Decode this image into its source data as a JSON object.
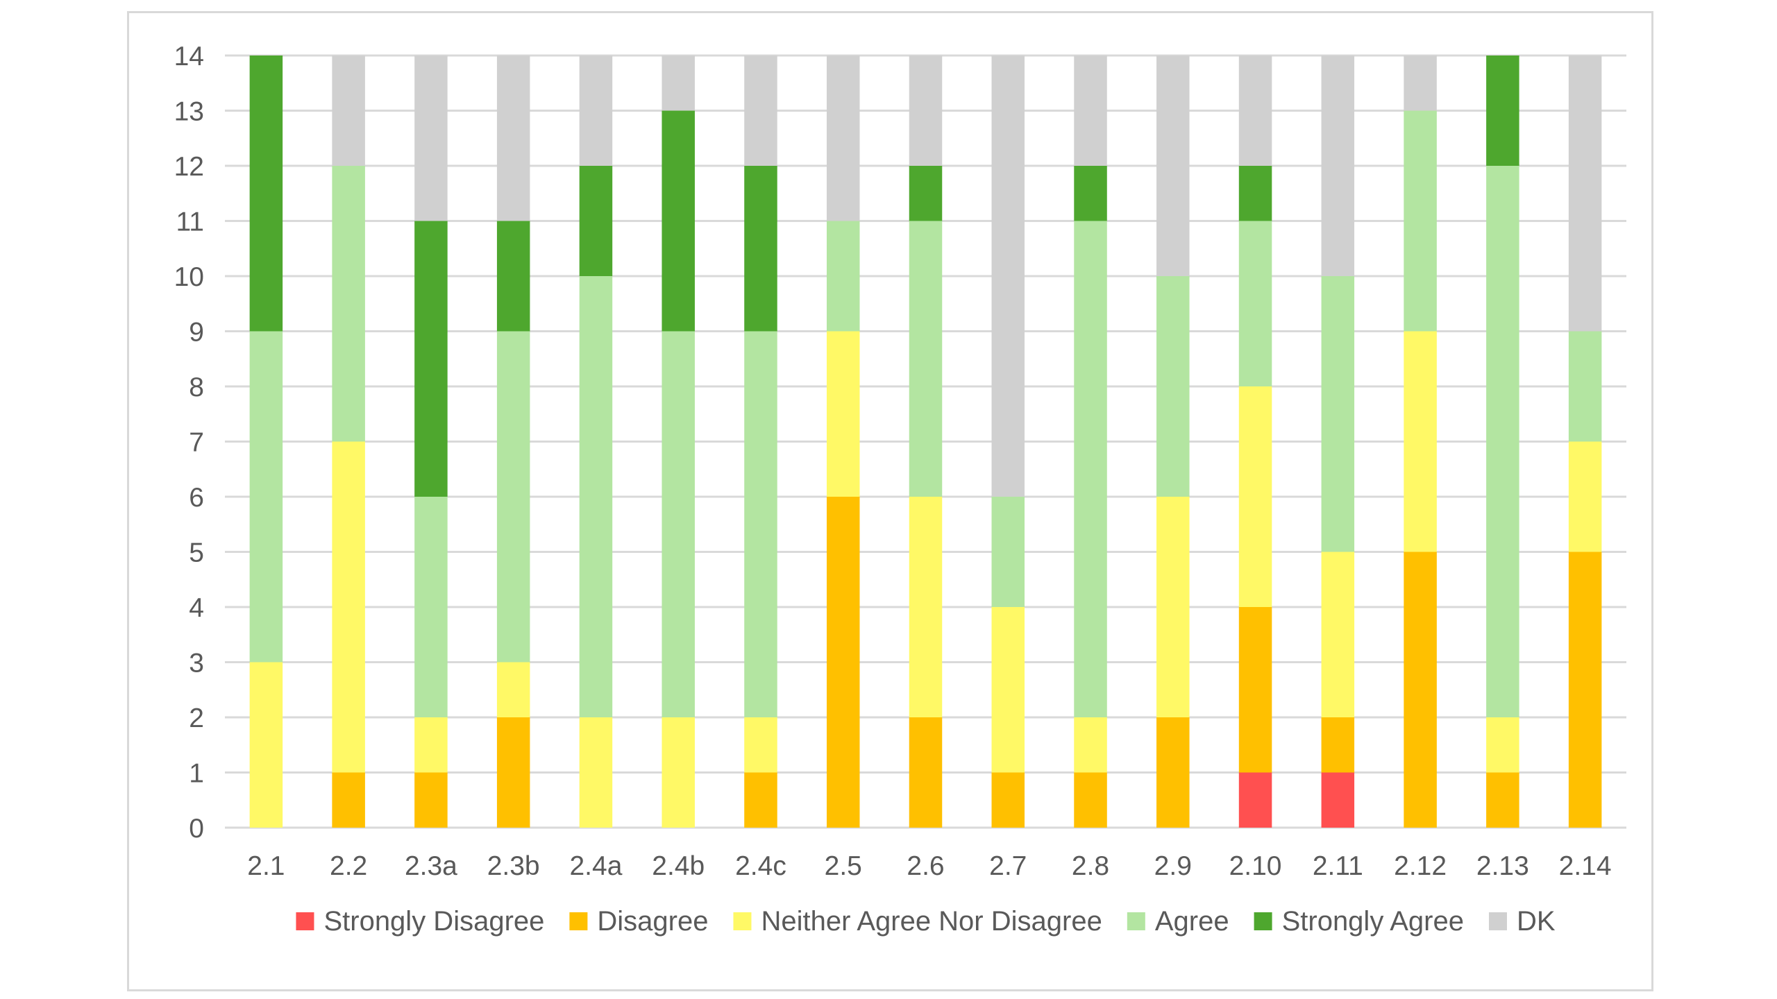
{
  "chart_data": {
    "type": "bar",
    "stacked": true,
    "categories": [
      "2.1",
      "2.2",
      "2.3a",
      "2.3b",
      "2.4a",
      "2.4b",
      "2.4c",
      "2.5",
      "2.6",
      "2.7",
      "2.8",
      "2.9",
      "2.10",
      "2.11",
      "2.12",
      "2.13",
      "2.14"
    ],
    "ylim": [
      0,
      14
    ],
    "yticks": [
      0,
      1,
      2,
      3,
      4,
      5,
      6,
      7,
      8,
      9,
      10,
      11,
      12,
      13,
      14
    ],
    "grid": true,
    "legend_position": "bottom",
    "series": [
      {
        "name": "Strongly Disagree",
        "color": "#ff5050",
        "values": [
          0,
          0,
          0,
          0,
          0,
          0,
          0,
          0,
          0,
          0,
          0,
          0,
          1,
          1,
          0,
          0,
          0
        ]
      },
      {
        "name": "Disagree",
        "color": "#ffc000",
        "values": [
          0,
          1,
          1,
          2,
          0,
          0,
          1,
          6,
          2,
          1,
          1,
          2,
          3,
          1,
          5,
          1,
          5
        ]
      },
      {
        "name": "Neither Agree Nor Disagree",
        "color": "#fff966",
        "values": [
          3,
          6,
          1,
          1,
          2,
          2,
          1,
          3,
          4,
          3,
          1,
          4,
          4,
          3,
          4,
          1,
          2
        ]
      },
      {
        "name": "Agree",
        "color": "#b3e5a1",
        "values": [
          6,
          5,
          4,
          6,
          8,
          7,
          7,
          2,
          5,
          2,
          9,
          4,
          3,
          5,
          4,
          10,
          2
        ]
      },
      {
        "name": "Strongly Agree",
        "color": "#4ea72e",
        "values": [
          5,
          0,
          5,
          2,
          2,
          4,
          3,
          0,
          1,
          0,
          1,
          0,
          1,
          0,
          0,
          2,
          0
        ]
      },
      {
        "name": "DK",
        "color": "#d0d0d0",
        "values": [
          0,
          2,
          3,
          3,
          2,
          1,
          2,
          3,
          2,
          8,
          2,
          4,
          2,
          4,
          1,
          0,
          5
        ]
      }
    ]
  }
}
